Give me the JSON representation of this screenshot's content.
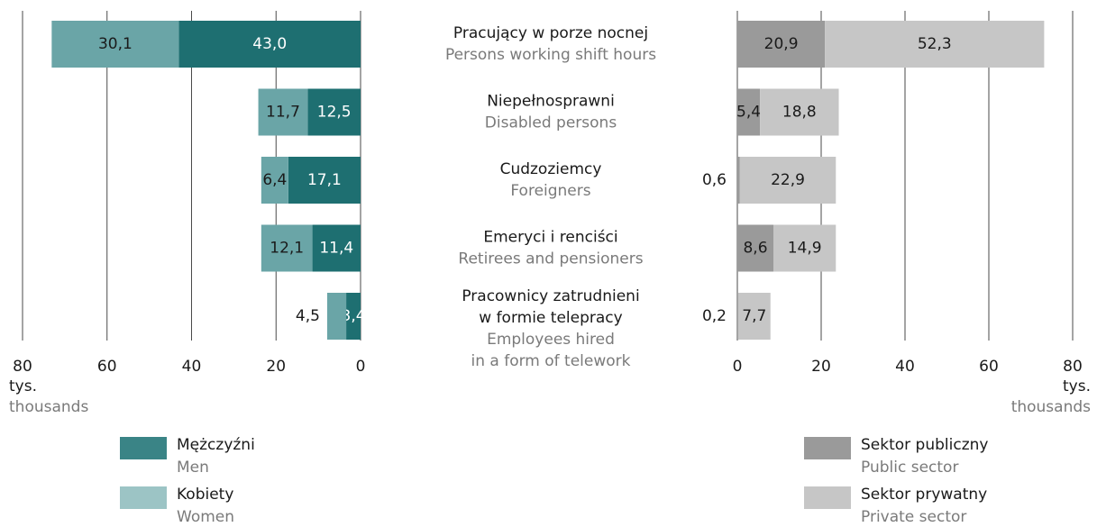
{
  "chart_data": [
    {
      "type": "bar",
      "orientation": "horizontal",
      "stacked": true,
      "categories": [
        {
          "pl": [
            "Pracujący w porze nocnej"
          ],
          "en": [
            "Persons working shift hours"
          ]
        },
        {
          "pl": [
            "Niepełnosprawni"
          ],
          "en": [
            "Disabled persons"
          ]
        },
        {
          "pl": [
            "Cudzoziemcy"
          ],
          "en": [
            "Foreigners"
          ]
        },
        {
          "pl": [
            "Emeryci i renciści"
          ],
          "en": [
            "Retirees and pensioners"
          ]
        },
        {
          "pl": [
            "Pracownicy zatrudnieni",
            "w formie telepracy"
          ],
          "en": [
            "Employees hired",
            "in a form of telework"
          ]
        }
      ],
      "xlim": [
        80,
        0
      ],
      "xticks": [
        80,
        60,
        40,
        20,
        0
      ],
      "grid": true,
      "axis_label": "tys.",
      "axis_label_en": "thousands",
      "series": [
        {
          "name": "Mężczyźni",
          "name_en": "Men",
          "color": "#1e6f71",
          "legend_color": "#3a8486",
          "label_color": "#ffffff",
          "values": [
            43.0,
            12.5,
            17.1,
            11.4,
            3.4
          ],
          "value_labels": [
            "43,0",
            "12,5",
            "17,1",
            "11,4",
            "3,4"
          ]
        },
        {
          "name": "Kobiety",
          "name_en": "Women",
          "color": "#6aa5a7",
          "legend_color": "#9cc4c5",
          "label_color": "#1a1a1a",
          "values": [
            30.1,
            11.7,
            6.4,
            12.1,
            4.5
          ],
          "value_labels": [
            "30,1",
            "11,7",
            "6,4",
            "12,1",
            "4,5"
          ]
        }
      ]
    },
    {
      "type": "bar",
      "orientation": "horizontal",
      "stacked": true,
      "xlim": [
        0,
        80
      ],
      "xticks": [
        0,
        20,
        40,
        60,
        80
      ],
      "grid": true,
      "axis_label": "tys.",
      "axis_label_en": "thousands",
      "series": [
        {
          "name": "Sektor publiczny",
          "name_en": "Public sector",
          "color": "#9a9a9a",
          "legend_color": "#9a9a9a",
          "label_color": "#1a1a1a",
          "values": [
            20.9,
            5.4,
            0.6,
            8.6,
            0.2
          ],
          "value_labels": [
            "20,9",
            "5,4",
            "0,6",
            "8,6",
            "0,2"
          ]
        },
        {
          "name": "Sektor prywatny",
          "name_en": "Private sector",
          "color": "#c6c6c6",
          "legend_color": "#c6c6c6",
          "label_color": "#1a1a1a",
          "values": [
            52.3,
            18.8,
            22.9,
            14.9,
            7.7
          ],
          "value_labels": [
            "52,3",
            "18,8",
            "22,9",
            "14,9",
            "7,7"
          ]
        }
      ]
    }
  ]
}
